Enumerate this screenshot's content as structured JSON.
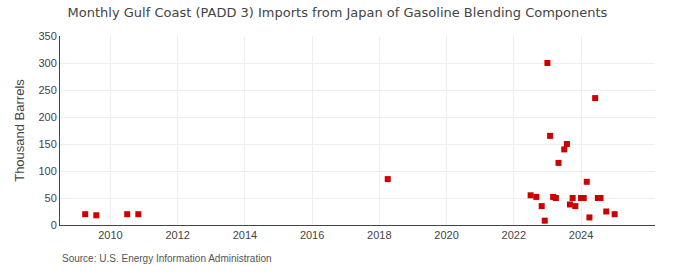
{
  "chart_data": {
    "type": "scatter",
    "title": "Monthly Gulf Coast (PADD 3) Imports from Japan of Gasoline Blending Components",
    "ylabel": "Thousand Barrels",
    "annotations": [
      "Source: U.S. Energy Information Administration"
    ],
    "x": [
      2009.25,
      2009.58,
      2010.5,
      2010.83,
      2018.25,
      2022.5,
      2022.67,
      2022.83,
      2022.92,
      2023.0,
      2023.08,
      2023.17,
      2023.25,
      2023.33,
      2023.5,
      2023.58,
      2023.67,
      2023.75,
      2023.83,
      2024.0,
      2024.08,
      2024.17,
      2024.25,
      2024.42,
      2024.5,
      2024.58,
      2024.75,
      2025.0
    ],
    "values": [
      20,
      18,
      20,
      20,
      85,
      55,
      52,
      35,
      8,
      300,
      165,
      52,
      50,
      115,
      140,
      150,
      38,
      50,
      35,
      50,
      50,
      80,
      14,
      235,
      50,
      50,
      25,
      20
    ],
    "color": "#cc0000",
    "marker": "square",
    "xlim": [
      2008.5,
      2026.2
    ],
    "xticks": [
      2010,
      2012,
      2014,
      2016,
      2018,
      2020,
      2022,
      2024
    ],
    "ylim": [
      0,
      350
    ],
    "yticks": [
      0,
      50,
      100,
      150,
      200,
      250,
      300,
      350
    ],
    "grid": true
  }
}
